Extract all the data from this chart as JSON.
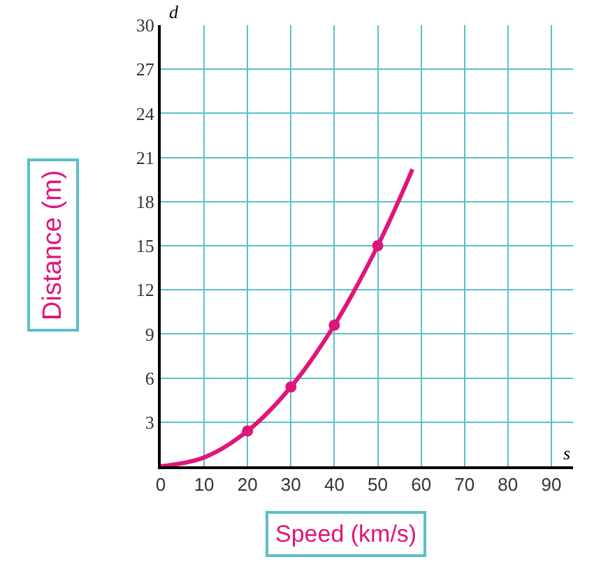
{
  "chart_data": {
    "type": "scatter",
    "xlabel": "Speed (km/s)",
    "ylabel": "Distance (m)",
    "annotations": [
      "d",
      "s"
    ],
    "series": [
      {
        "type": "line",
        "color": "#e0157a",
        "marker": "none",
        "x": [
          0,
          10,
          20,
          30,
          40,
          50,
          58
        ],
        "values": [
          0,
          0.6,
          2.4,
          5.4,
          9.6,
          15,
          20.2
        ]
      },
      {
        "color": "#e0157a",
        "marker": "circle",
        "x": [
          20,
          30,
          40,
          50
        ],
        "values": [
          2.4,
          5.4,
          9.6,
          15
        ]
      }
    ],
    "xlim": [
      0,
      95
    ],
    "ylim": [
      0,
      30
    ],
    "xticks": [
      0,
      10,
      20,
      30,
      40,
      50,
      60,
      70,
      80,
      90
    ],
    "yticks": [
      3,
      6,
      9,
      12,
      15,
      18,
      21,
      24,
      27,
      30
    ],
    "grid": true,
    "legend": false
  }
}
